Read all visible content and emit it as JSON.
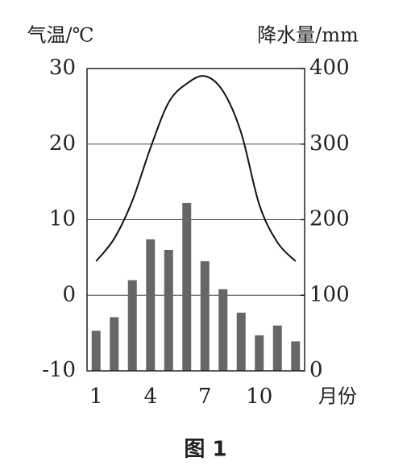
{
  "chart_data": {
    "type": "bar_line",
    "title": "图 1",
    "categories": [
      "1",
      null,
      null,
      "4",
      null,
      null,
      "7",
      null,
      null,
      "10",
      null,
      null
    ],
    "x_label": "月份",
    "y_label": "气温/℃",
    "y2_label": "降水量/mm",
    "ylim": [
      -10,
      30
    ],
    "yticks": [
      -10,
      0,
      10,
      20,
      30
    ],
    "y2lim": [
      0,
      400
    ],
    "y2ticks": [
      0,
      100,
      200,
      300,
      400
    ],
    "grid": true,
    "series": [
      {
        "type": "line",
        "color": "#111111",
        "values": [
          4.5,
          7.5,
          12.5,
          19.5,
          25.5,
          28.0,
          29.0,
          27.0,
          21.5,
          12.0,
          7.0,
          4.5
        ]
      },
      {
        "type": "bar",
        "axis": "y2",
        "color": "#666666",
        "values": [
          53,
          71,
          120,
          174,
          160,
          222,
          145,
          108,
          77,
          47,
          60,
          39
        ]
      }
    ]
  }
}
